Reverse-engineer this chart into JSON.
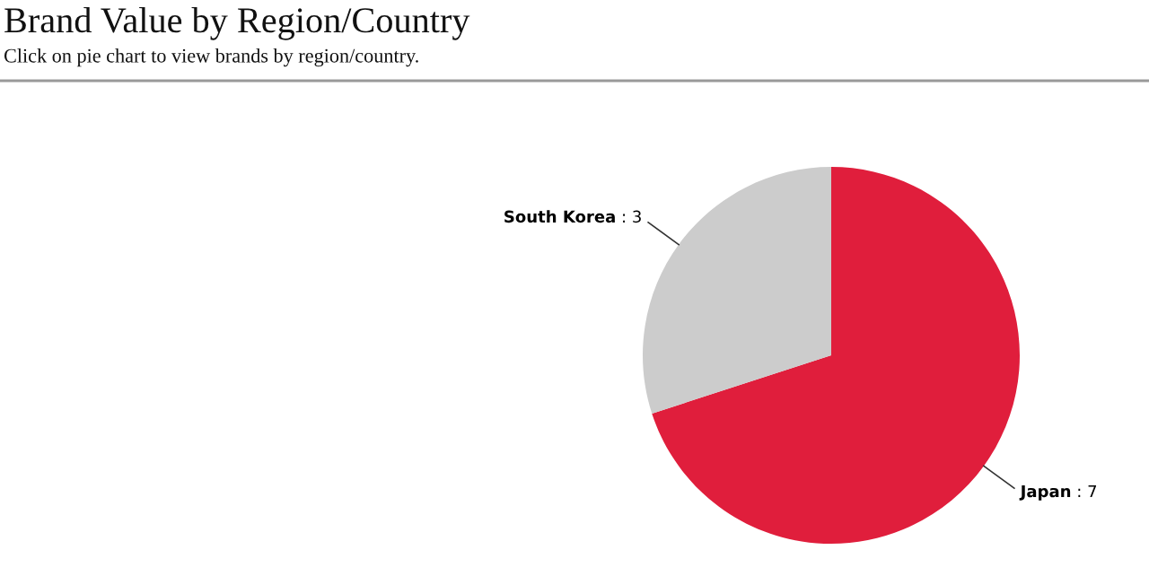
{
  "chart_data": {
    "type": "pie",
    "title": "Brand Value by Region/Country",
    "subtitle": "Click on pie chart to view brands by region/country.",
    "categories": [
      "Japan",
      "South Korea"
    ],
    "values": [
      7,
      3
    ],
    "colors": [
      "#e01e3c",
      "#cccccc"
    ],
    "value_labels": [
      ": 7",
      ": 3"
    ],
    "legend": false
  }
}
